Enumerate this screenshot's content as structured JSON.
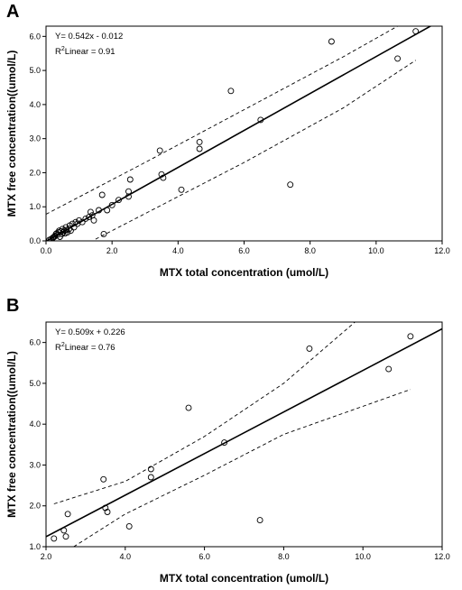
{
  "chart_data": [
    {
      "type": "scatter",
      "panel_label": "A",
      "xlabel": "MTX total concentration (umol/L)",
      "ylabel": "MTX free concentration((umol/L)",
      "xlim": [
        0,
        12
      ],
      "ylim": [
        0,
        6.3
      ],
      "xticks": [
        "0.0",
        "2.0",
        "4.0",
        "6.0",
        "8.0",
        "10.0",
        "12.0"
      ],
      "yticks": [
        "0.0",
        "1.0",
        "2.0",
        "3.0",
        "4.0",
        "5.0",
        "6.0"
      ],
      "xtick_values": [
        0,
        2,
        4,
        6,
        8,
        10,
        12
      ],
      "ytick_values": [
        0,
        1,
        2,
        3,
        4,
        5,
        6
      ],
      "equation": "Y= 0.542x - 0.012",
      "r2_prefix": "R",
      "r2_label": "Linear = 0.91",
      "fit": {
        "slope": 0.542,
        "intercept": -0.012
      },
      "ci_upper": [
        [
          0,
          0.78
        ],
        [
          3,
          2.3
        ],
        [
          6,
          3.85
        ],
        [
          9,
          5.4
        ],
        [
          11.2,
          6.6
        ]
      ],
      "ci_lower": [
        [
          1.5,
          0.05
        ],
        [
          3,
          0.8
        ],
        [
          6,
          2.3
        ],
        [
          9,
          3.9
        ],
        [
          11.2,
          5.3
        ]
      ],
      "points": [
        [
          0.1,
          0.03
        ],
        [
          0.15,
          0.05
        ],
        [
          0.2,
          0.08
        ],
        [
          0.22,
          0.1
        ],
        [
          0.25,
          0.12
        ],
        [
          0.28,
          0.15
        ],
        [
          0.3,
          0.2
        ],
        [
          0.32,
          0.22
        ],
        [
          0.35,
          0.18
        ],
        [
          0.38,
          0.25
        ],
        [
          0.4,
          0.3
        ],
        [
          0.42,
          0.12
        ],
        [
          0.45,
          0.28
        ],
        [
          0.48,
          0.2
        ],
        [
          0.5,
          0.35
        ],
        [
          0.52,
          0.25
        ],
        [
          0.55,
          0.3
        ],
        [
          0.58,
          0.22
        ],
        [
          0.6,
          0.4
        ],
        [
          0.62,
          0.32
        ],
        [
          0.65,
          0.25
        ],
        [
          0.7,
          0.35
        ],
        [
          0.72,
          0.45
        ],
        [
          0.75,
          0.3
        ],
        [
          0.8,
          0.5
        ],
        [
          0.85,
          0.4
        ],
        [
          0.9,
          0.55
        ],
        [
          0.95,
          0.5
        ],
        [
          1.0,
          0.6
        ],
        [
          1.1,
          0.55
        ],
        [
          1.2,
          0.65
        ],
        [
          1.3,
          0.7
        ],
        [
          1.35,
          0.85
        ],
        [
          1.4,
          0.75
        ],
        [
          1.45,
          0.6
        ],
        [
          1.6,
          0.9
        ],
        [
          1.7,
          1.35
        ],
        [
          1.75,
          0.2
        ],
        [
          1.85,
          0.9
        ],
        [
          2.0,
          1.05
        ],
        [
          2.2,
          1.2
        ],
        [
          2.5,
          1.3
        ],
        [
          2.5,
          1.45
        ],
        [
          2.55,
          1.8
        ],
        [
          3.45,
          2.65
        ],
        [
          3.5,
          1.95
        ],
        [
          3.55,
          1.85
        ],
        [
          4.1,
          1.5
        ],
        [
          4.65,
          2.9
        ],
        [
          4.65,
          2.7
        ],
        [
          5.6,
          4.4
        ],
        [
          6.5,
          3.55
        ],
        [
          7.4,
          1.65
        ],
        [
          8.65,
          5.85
        ],
        [
          10.65,
          5.35
        ],
        [
          11.2,
          6.15
        ]
      ]
    },
    {
      "type": "scatter",
      "panel_label": "B",
      "xlabel": "MTX total concentration (umol/L)",
      "ylabel": "MTX free concentration((umol/L)",
      "xlim": [
        2,
        12
      ],
      "ylim": [
        1,
        6.5
      ],
      "xticks": [
        "2.0",
        "4.0",
        "6.0",
        "8.0",
        "10.0",
        "12.0"
      ],
      "yticks": [
        "1.0",
        "2.0",
        "3.0",
        "4.0",
        "5.0",
        "6.0"
      ],
      "xtick_values": [
        2,
        4,
        6,
        8,
        10,
        12
      ],
      "ytick_values": [
        1,
        2,
        3,
        4,
        5,
        6
      ],
      "equation": "Y= 0.509x + 0.226",
      "r2_prefix": "R",
      "r2_label": "Linear = 0.76",
      "fit": {
        "slope": 0.509,
        "intercept": 0.226
      },
      "ci_upper": [
        [
          2.2,
          2.05
        ],
        [
          4,
          2.6
        ],
        [
          6,
          3.7
        ],
        [
          8,
          5.0
        ],
        [
          9.8,
          6.5
        ]
      ],
      "ci_lower": [
        [
          2.7,
          1.0
        ],
        [
          4,
          1.8
        ],
        [
          6,
          2.75
        ],
        [
          8,
          3.75
        ],
        [
          11.2,
          4.85
        ]
      ],
      "points": [
        [
          2.2,
          1.2
        ],
        [
          2.45,
          1.4
        ],
        [
          2.5,
          1.25
        ],
        [
          2.55,
          1.8
        ],
        [
          3.45,
          2.65
        ],
        [
          3.5,
          1.95
        ],
        [
          3.55,
          1.85
        ],
        [
          4.1,
          1.5
        ],
        [
          4.65,
          2.9
        ],
        [
          4.65,
          2.7
        ],
        [
          5.6,
          4.4
        ],
        [
          6.5,
          3.55
        ],
        [
          7.4,
          1.65
        ],
        [
          8.65,
          5.85
        ],
        [
          10.65,
          5.35
        ],
        [
          11.2,
          6.15
        ]
      ]
    }
  ]
}
